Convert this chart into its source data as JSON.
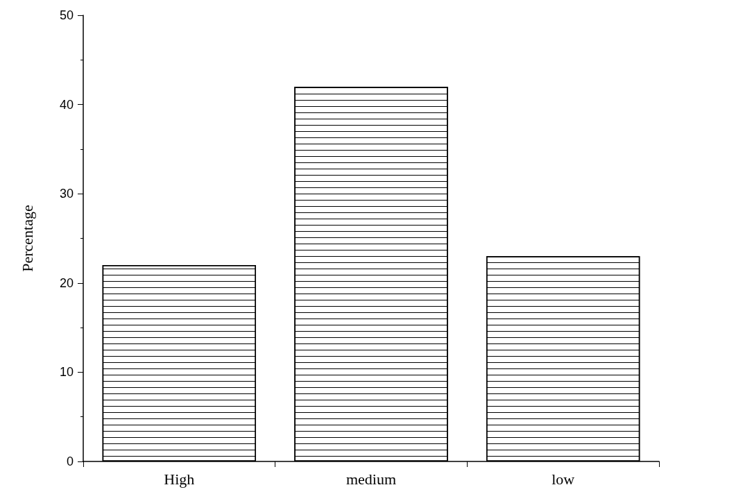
{
  "chart_data": {
    "type": "bar",
    "ylabel": "Percentage",
    "categories": [
      "High",
      "medium",
      "low"
    ],
    "values": [
      22,
      42,
      23
    ],
    "color": "#000000",
    "ylim": [
      0,
      50
    ],
    "yticks": [
      0,
      10,
      20,
      30,
      40,
      50
    ],
    "grid": false
  }
}
